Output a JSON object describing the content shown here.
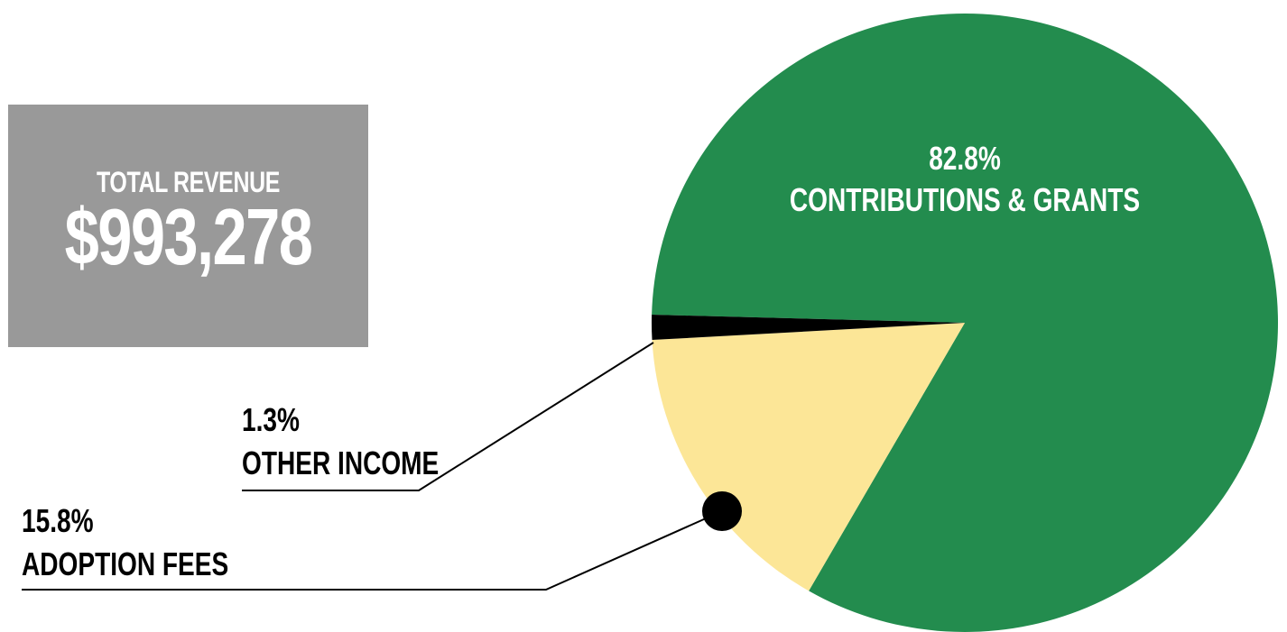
{
  "summary": {
    "label": "TOTAL REVENUE",
    "value": "$993,278"
  },
  "colors": {
    "contributions": "#238c4e",
    "adoption": "#fce697",
    "other": "#000000",
    "box": "#999999"
  },
  "chart_data": {
    "type": "pie",
    "slices": [
      {
        "label": "CONTRIBUTIONS & GRANTS",
        "value": 82.8,
        "display": "82.8%"
      },
      {
        "label": "ADOPTION FEES",
        "value": 15.8,
        "display": "15.8%"
      },
      {
        "label": "OTHER INCOME",
        "value": 1.3,
        "display": "1.3%"
      }
    ]
  }
}
